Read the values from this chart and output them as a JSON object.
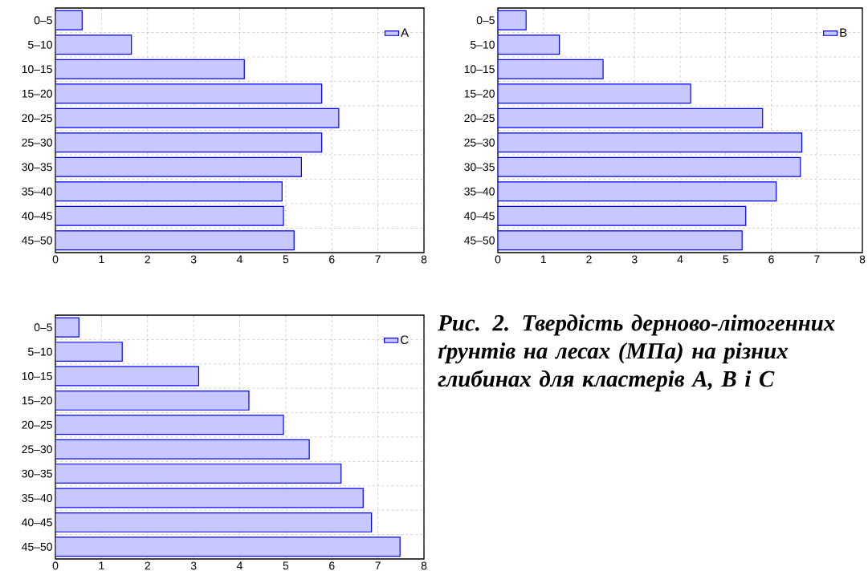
{
  "chart_data": [
    {
      "type": "bar",
      "orientation": "horizontal",
      "categories": [
        "0–5",
        "5–10",
        "10–15",
        "15–20",
        "20–25",
        "25–30",
        "30–35",
        "35–40",
        "40–45",
        "45–50"
      ],
      "series": [
        {
          "name": "A",
          "color": "#c8c8ff",
          "values": [
            0.58,
            1.65,
            4.1,
            5.78,
            6.15,
            5.78,
            5.34,
            4.92,
            4.95,
            5.18
          ]
        }
      ],
      "xlim": [
        0,
        8
      ],
      "xticks": [
        0,
        1,
        2,
        3,
        4,
        5,
        6,
        7,
        8
      ],
      "grid": true,
      "legend": "top right"
    },
    {
      "type": "bar",
      "orientation": "horizontal",
      "categories": [
        "0–5",
        "5–10",
        "10–15",
        "15–20",
        "20–25",
        "25–30",
        "30–35",
        "35–40",
        "40–45",
        "45–50"
      ],
      "series": [
        {
          "name": "B",
          "color": "#c8c8ff",
          "values": [
            0.62,
            1.35,
            2.31,
            4.23,
            5.81,
            6.67,
            6.64,
            6.11,
            5.44,
            5.36
          ]
        }
      ],
      "xlim": [
        0,
        8
      ],
      "xticks": [
        0,
        1,
        2,
        3,
        4,
        5,
        6,
        7,
        8
      ],
      "grid": true,
      "legend": "top right"
    },
    {
      "type": "bar",
      "orientation": "horizontal",
      "categories": [
        "0–5",
        "5–10",
        "10–15",
        "15–20",
        "20–25",
        "25–30",
        "30–35",
        "35–40",
        "40–45",
        "45–50"
      ],
      "series": [
        {
          "name": "C",
          "color": "#c8c8ff",
          "values": [
            0.51,
            1.45,
            3.11,
            4.2,
            4.95,
            5.51,
            6.2,
            6.68,
            6.86,
            7.48
          ]
        }
      ],
      "xlim": [
        0,
        8
      ],
      "xticks": [
        0,
        1,
        2,
        3,
        4,
        5,
        6,
        7,
        8
      ],
      "grid": true,
      "legend": "top right"
    },
    {
      "type": "other",
      "title": "Рис. 2. Твердість дерново-літогенних ґрунтів на лесах (МПа) на різних глибинах для кластерів А, В і С"
    }
  ]
}
